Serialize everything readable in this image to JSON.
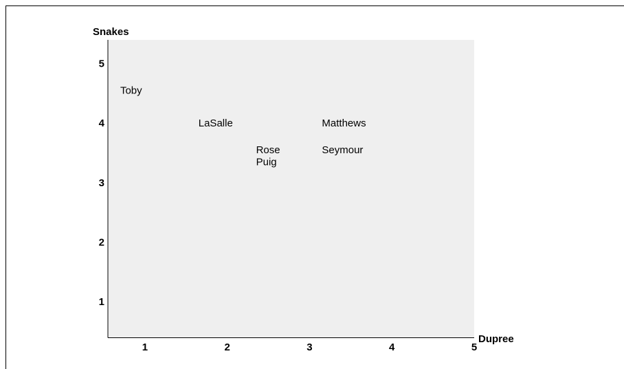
{
  "chart_data": {
    "type": "scatter",
    "title": "",
    "xlabel": "Dupree",
    "ylabel": "Snakes",
    "xlim": [
      0.55,
      5
    ],
    "ylim": [
      0.4,
      5.4
    ],
    "x_ticks": [
      1,
      2,
      3,
      4,
      5
    ],
    "y_ticks": [
      1,
      2,
      3,
      4,
      5
    ],
    "grid": false,
    "plot_background": "#efefef",
    "points": [
      {
        "label": "Toby",
        "x": 0.7,
        "y": 4.55
      },
      {
        "label": "LaSalle",
        "x": 1.65,
        "y": 4.0
      },
      {
        "label": "Matthews",
        "x": 3.15,
        "y": 4.0
      },
      {
        "label": "Rose",
        "x": 2.35,
        "y": 3.55
      },
      {
        "label": "Seymour",
        "x": 3.15,
        "y": 3.55
      },
      {
        "label": "Puig",
        "x": 2.35,
        "y": 3.35
      }
    ]
  }
}
